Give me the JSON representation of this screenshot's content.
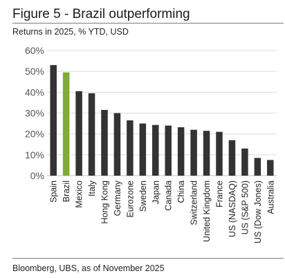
{
  "figure": {
    "title": "Figure 5 - Brazil outperforming",
    "subtitle": "Returns in 2025, % YTD, USD",
    "source": "Bloomberg, UBS, as of November 2025"
  },
  "colors": {
    "bar": "#333333",
    "highlight": "#7fac35",
    "grid": "#dcdcdc"
  },
  "chart_data": {
    "type": "bar",
    "title": "Figure 5 - Brazil outperforming",
    "subtitle": "Returns in 2025, % YTD, USD",
    "xlabel": "",
    "ylabel": "",
    "ylim": [
      0,
      60
    ],
    "yticks": [
      "0%",
      "10%",
      "20%",
      "30%",
      "40%",
      "50%",
      "60%"
    ],
    "grid": true,
    "highlight": "Brazil",
    "categories": [
      "Spain",
      "Brazil",
      "Mexico",
      "Italy",
      "Hong Kong",
      "Germany",
      "Eurozone",
      "Sweden",
      "Japan",
      "Canada",
      "China",
      "Switzerland",
      "United Kingdom",
      "France",
      "US (NASDAQ)",
      "US (S&P 500)",
      "US (Dow Jones)",
      "Australia"
    ],
    "values": [
      53,
      49.5,
      40.5,
      39.5,
      31.5,
      30,
      26.5,
      25,
      24.3,
      24,
      23.2,
      22,
      21.5,
      21,
      17,
      13,
      8.5,
      7.5
    ]
  }
}
